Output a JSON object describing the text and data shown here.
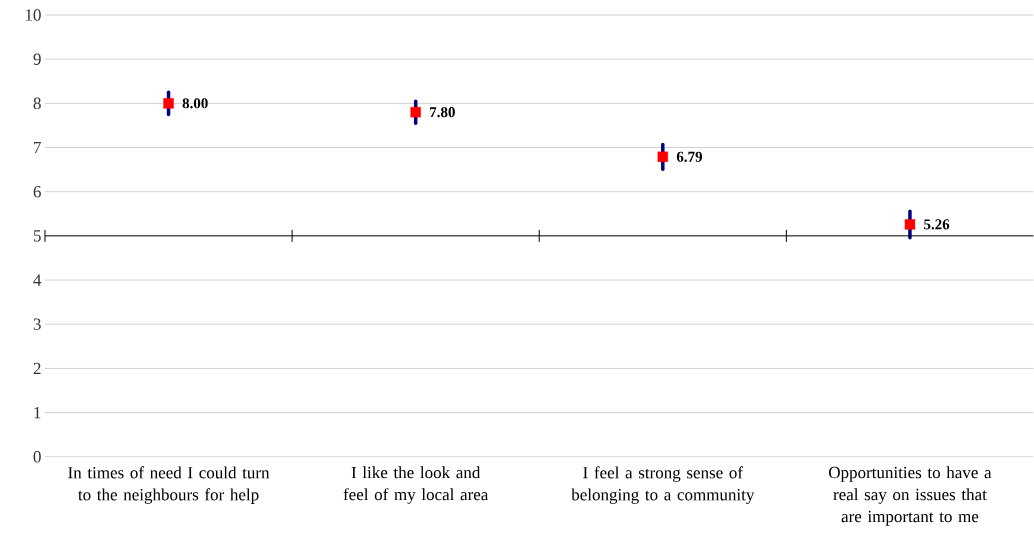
{
  "chart_data": {
    "type": "scatter",
    "categories": [
      "In times of need I could turn to the neighbours for help",
      "I like the look and feel of my local area",
      "I feel a strong sense of belonging to a community",
      "Opportunities to have a real say on issues that are important to me"
    ],
    "series": [
      {
        "color": "#ff0000",
        "values": [
          8.0,
          7.8,
          6.79,
          5.26
        ],
        "errors": [
          0.25,
          0.25,
          0.28,
          0.3
        ],
        "value_labels": [
          "8.00",
          "7.80",
          "6.79",
          "5.26"
        ]
      }
    ],
    "ylim": [
      0,
      10
    ],
    "yticks": [
      0,
      1,
      2,
      3,
      4,
      5,
      6,
      7,
      8,
      9,
      10
    ],
    "grid": "y",
    "marker": "square",
    "ref_lines": [
      {
        "axis": "y",
        "value": 5,
        "color": "#000000"
      }
    ]
  }
}
